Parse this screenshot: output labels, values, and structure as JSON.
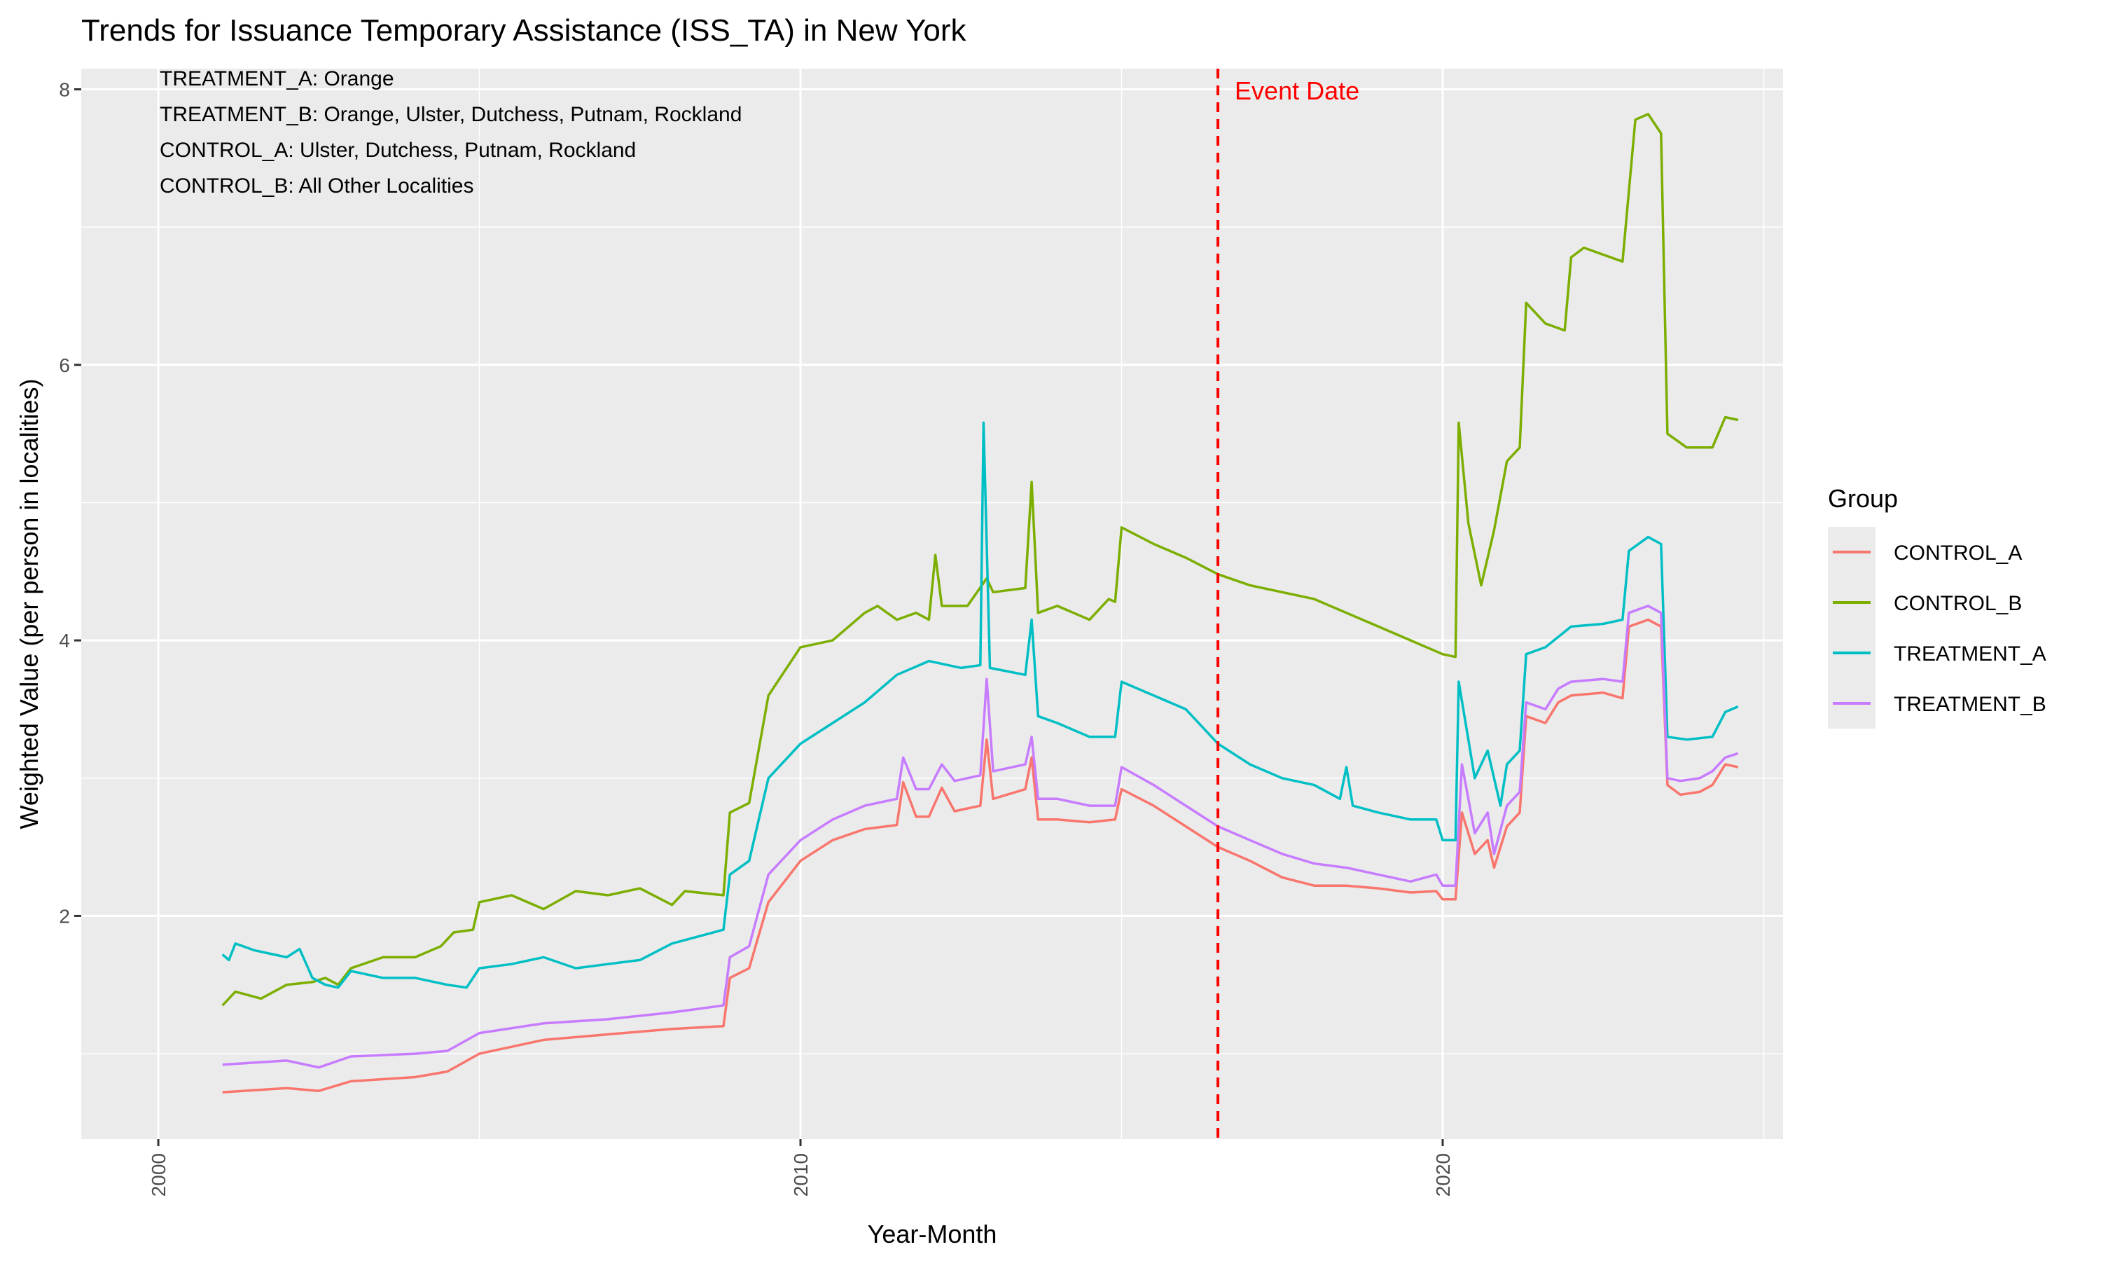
{
  "chart_data": {
    "type": "line",
    "title": "Trends for Issuance Temporary Assistance (ISS_TA) in New York",
    "xlabel": "Year-Month",
    "ylabel": "Weighted Value (per person in localities)",
    "x_ticks": [
      "2000",
      "2010",
      "2020"
    ],
    "y_ticks": [
      "2",
      "4",
      "6",
      "8"
    ],
    "xlim": [
      1998.8,
      2025.3
    ],
    "ylim": [
      0.38,
      8.15
    ],
    "grid": true,
    "legend_title": "Group",
    "legend_position": "right",
    "event": {
      "x": 2016.5,
      "label": "Event Date",
      "color": "#ff0000"
    },
    "notes": [
      "TREATMENT_A: Orange",
      "TREATMENT_B: Orange, Ulster, Dutchess, Putnam, Rockland",
      "CONTROL_A: Ulster, Dutchess, Putnam, Rockland",
      "CONTROL_B: All Other Localities"
    ],
    "series": [
      {
        "name": "CONTROL_A",
        "color": "#F8766D",
        "points": [
          [
            2001.0,
            0.72
          ],
          [
            2002.0,
            0.75
          ],
          [
            2002.5,
            0.73
          ],
          [
            2003.0,
            0.8
          ],
          [
            2004.0,
            0.83
          ],
          [
            2004.5,
            0.87
          ],
          [
            2005.0,
            1.0
          ],
          [
            2006.0,
            1.1
          ],
          [
            2007.0,
            1.14
          ],
          [
            2008.0,
            1.18
          ],
          [
            2008.8,
            1.2
          ],
          [
            2008.9,
            1.55
          ],
          [
            2009.2,
            1.62
          ],
          [
            2009.5,
            2.1
          ],
          [
            2010.0,
            2.4
          ],
          [
            2010.5,
            2.55
          ],
          [
            2011.0,
            2.63
          ],
          [
            2011.5,
            2.66
          ],
          [
            2011.6,
            2.97
          ],
          [
            2011.8,
            2.72
          ],
          [
            2012.0,
            2.72
          ],
          [
            2012.2,
            2.93
          ],
          [
            2012.4,
            2.76
          ],
          [
            2012.6,
            2.78
          ],
          [
            2012.8,
            2.8
          ],
          [
            2012.9,
            3.28
          ],
          [
            2013.0,
            2.85
          ],
          [
            2013.5,
            2.92
          ],
          [
            2013.6,
            3.15
          ],
          [
            2013.7,
            2.7
          ],
          [
            2014.0,
            2.7
          ],
          [
            2014.5,
            2.68
          ],
          [
            2014.9,
            2.7
          ],
          [
            2015.0,
            2.92
          ],
          [
            2015.5,
            2.8
          ],
          [
            2016.0,
            2.65
          ],
          [
            2016.5,
            2.5
          ],
          [
            2017.0,
            2.4
          ],
          [
            2017.5,
            2.28
          ],
          [
            2018.0,
            2.22
          ],
          [
            2018.5,
            2.22
          ],
          [
            2019.0,
            2.2
          ],
          [
            2019.5,
            2.17
          ],
          [
            2019.9,
            2.18
          ],
          [
            2020.0,
            2.12
          ],
          [
            2020.2,
            2.12
          ],
          [
            2020.3,
            2.75
          ],
          [
            2020.5,
            2.45
          ],
          [
            2020.7,
            2.55
          ],
          [
            2020.8,
            2.35
          ],
          [
            2021.0,
            2.65
          ],
          [
            2021.2,
            2.75
          ],
          [
            2021.3,
            3.45
          ],
          [
            2021.6,
            3.4
          ],
          [
            2021.8,
            3.55
          ],
          [
            2022.0,
            3.6
          ],
          [
            2022.5,
            3.62
          ],
          [
            2022.8,
            3.58
          ],
          [
            2022.9,
            4.1
          ],
          [
            2023.2,
            4.15
          ],
          [
            2023.4,
            4.1
          ],
          [
            2023.5,
            2.95
          ],
          [
            2023.7,
            2.88
          ],
          [
            2024.0,
            2.9
          ],
          [
            2024.2,
            2.95
          ],
          [
            2024.4,
            3.1
          ],
          [
            2024.6,
            3.08
          ]
        ]
      },
      {
        "name": "CONTROL_B",
        "color": "#7CAE00",
        "points": [
          [
            2001.0,
            1.35
          ],
          [
            2001.2,
            1.45
          ],
          [
            2001.6,
            1.4
          ],
          [
            2002.0,
            1.5
          ],
          [
            2002.4,
            1.52
          ],
          [
            2002.6,
            1.55
          ],
          [
            2002.8,
            1.5
          ],
          [
            2003.0,
            1.62
          ],
          [
            2003.5,
            1.7
          ],
          [
            2004.0,
            1.7
          ],
          [
            2004.4,
            1.78
          ],
          [
            2004.6,
            1.88
          ],
          [
            2004.9,
            1.9
          ],
          [
            2005.0,
            2.1
          ],
          [
            2005.5,
            2.15
          ],
          [
            2006.0,
            2.05
          ],
          [
            2006.5,
            2.18
          ],
          [
            2007.0,
            2.15
          ],
          [
            2007.5,
            2.2
          ],
          [
            2008.0,
            2.08
          ],
          [
            2008.2,
            2.18
          ],
          [
            2008.8,
            2.15
          ],
          [
            2008.9,
            2.75
          ],
          [
            2009.2,
            2.82
          ],
          [
            2009.5,
            3.6
          ],
          [
            2010.0,
            3.95
          ],
          [
            2010.5,
            4.0
          ],
          [
            2011.0,
            4.2
          ],
          [
            2011.2,
            4.25
          ],
          [
            2011.5,
            4.15
          ],
          [
            2011.8,
            4.2
          ],
          [
            2012.0,
            4.15
          ],
          [
            2012.1,
            4.62
          ],
          [
            2012.2,
            4.25
          ],
          [
            2012.6,
            4.25
          ],
          [
            2012.9,
            4.45
          ],
          [
            2013.0,
            4.35
          ],
          [
            2013.5,
            4.38
          ],
          [
            2013.6,
            5.15
          ],
          [
            2013.7,
            4.2
          ],
          [
            2014.0,
            4.25
          ],
          [
            2014.5,
            4.15
          ],
          [
            2014.8,
            4.3
          ],
          [
            2014.9,
            4.28
          ],
          [
            2015.0,
            4.82
          ],
          [
            2015.5,
            4.7
          ],
          [
            2016.0,
            4.6
          ],
          [
            2016.5,
            4.48
          ],
          [
            2017.0,
            4.4
          ],
          [
            2017.5,
            4.35
          ],
          [
            2018.0,
            4.3
          ],
          [
            2018.5,
            4.2
          ],
          [
            2019.0,
            4.1
          ],
          [
            2019.5,
            4.0
          ],
          [
            2020.0,
            3.9
          ],
          [
            2020.2,
            3.88
          ],
          [
            2020.25,
            5.58
          ],
          [
            2020.4,
            4.85
          ],
          [
            2020.6,
            4.4
          ],
          [
            2020.8,
            4.8
          ],
          [
            2021.0,
            5.3
          ],
          [
            2021.2,
            5.4
          ],
          [
            2021.3,
            6.45
          ],
          [
            2021.6,
            6.3
          ],
          [
            2021.9,
            6.25
          ],
          [
            2022.0,
            6.78
          ],
          [
            2022.2,
            6.85
          ],
          [
            2022.5,
            6.8
          ],
          [
            2022.8,
            6.75
          ],
          [
            2023.0,
            7.78
          ],
          [
            2023.2,
            7.82
          ],
          [
            2023.4,
            7.68
          ],
          [
            2023.5,
            5.5
          ],
          [
            2023.8,
            5.4
          ],
          [
            2024.2,
            5.4
          ],
          [
            2024.4,
            5.62
          ],
          [
            2024.6,
            5.6
          ]
        ]
      },
      {
        "name": "TREATMENT_A",
        "color": "#00BFC4",
        "points": [
          [
            2001.0,
            1.72
          ],
          [
            2001.1,
            1.68
          ],
          [
            2001.2,
            1.8
          ],
          [
            2001.5,
            1.75
          ],
          [
            2002.0,
            1.7
          ],
          [
            2002.2,
            1.76
          ],
          [
            2002.4,
            1.55
          ],
          [
            2002.6,
            1.5
          ],
          [
            2002.8,
            1.48
          ],
          [
            2003.0,
            1.6
          ],
          [
            2003.5,
            1.55
          ],
          [
            2004.0,
            1.55
          ],
          [
            2004.5,
            1.5
          ],
          [
            2004.8,
            1.48
          ],
          [
            2005.0,
            1.62
          ],
          [
            2005.5,
            1.65
          ],
          [
            2006.0,
            1.7
          ],
          [
            2006.5,
            1.62
          ],
          [
            2007.0,
            1.65
          ],
          [
            2007.5,
            1.68
          ],
          [
            2008.0,
            1.8
          ],
          [
            2008.8,
            1.9
          ],
          [
            2008.9,
            2.3
          ],
          [
            2009.2,
            2.4
          ],
          [
            2009.5,
            3.0
          ],
          [
            2010.0,
            3.25
          ],
          [
            2010.5,
            3.4
          ],
          [
            2011.0,
            3.55
          ],
          [
            2011.5,
            3.75
          ],
          [
            2012.0,
            3.85
          ],
          [
            2012.5,
            3.8
          ],
          [
            2012.8,
            3.82
          ],
          [
            2012.85,
            5.58
          ],
          [
            2012.95,
            3.8
          ],
          [
            2013.5,
            3.75
          ],
          [
            2013.6,
            4.15
          ],
          [
            2013.7,
            3.45
          ],
          [
            2014.0,
            3.4
          ],
          [
            2014.5,
            3.3
          ],
          [
            2014.9,
            3.3
          ],
          [
            2015.0,
            3.7
          ],
          [
            2015.5,
            3.6
          ],
          [
            2016.0,
            3.5
          ],
          [
            2016.5,
            3.25
          ],
          [
            2017.0,
            3.1
          ],
          [
            2017.5,
            3.0
          ],
          [
            2018.0,
            2.95
          ],
          [
            2018.4,
            2.85
          ],
          [
            2018.5,
            3.08
          ],
          [
            2018.6,
            2.8
          ],
          [
            2019.0,
            2.75
          ],
          [
            2019.5,
            2.7
          ],
          [
            2019.9,
            2.7
          ],
          [
            2020.0,
            2.55
          ],
          [
            2020.2,
            2.55
          ],
          [
            2020.25,
            3.7
          ],
          [
            2020.5,
            3.0
          ],
          [
            2020.7,
            3.2
          ],
          [
            2020.9,
            2.8
          ],
          [
            2021.0,
            3.1
          ],
          [
            2021.2,
            3.2
          ],
          [
            2021.3,
            3.9
          ],
          [
            2021.6,
            3.95
          ],
          [
            2022.0,
            4.1
          ],
          [
            2022.5,
            4.12
          ],
          [
            2022.8,
            4.15
          ],
          [
            2022.9,
            4.65
          ],
          [
            2023.2,
            4.75
          ],
          [
            2023.4,
            4.7
          ],
          [
            2023.5,
            3.3
          ],
          [
            2023.8,
            3.28
          ],
          [
            2024.2,
            3.3
          ],
          [
            2024.4,
            3.48
          ],
          [
            2024.6,
            3.52
          ]
        ]
      },
      {
        "name": "TREATMENT_B",
        "color": "#C77CFF",
        "points": [
          [
            2001.0,
            0.92
          ],
          [
            2002.0,
            0.95
          ],
          [
            2002.5,
            0.9
          ],
          [
            2003.0,
            0.98
          ],
          [
            2004.0,
            1.0
          ],
          [
            2004.5,
            1.02
          ],
          [
            2005.0,
            1.15
          ],
          [
            2006.0,
            1.22
          ],
          [
            2007.0,
            1.25
          ],
          [
            2008.0,
            1.3
          ],
          [
            2008.8,
            1.35
          ],
          [
            2008.9,
            1.7
          ],
          [
            2009.2,
            1.78
          ],
          [
            2009.5,
            2.3
          ],
          [
            2010.0,
            2.55
          ],
          [
            2010.5,
            2.7
          ],
          [
            2011.0,
            2.8
          ],
          [
            2011.5,
            2.85
          ],
          [
            2011.6,
            3.15
          ],
          [
            2011.8,
            2.92
          ],
          [
            2012.0,
            2.92
          ],
          [
            2012.2,
            3.1
          ],
          [
            2012.4,
            2.98
          ],
          [
            2012.6,
            3.0
          ],
          [
            2012.8,
            3.02
          ],
          [
            2012.9,
            3.72
          ],
          [
            2013.0,
            3.05
          ],
          [
            2013.5,
            3.1
          ],
          [
            2013.6,
            3.3
          ],
          [
            2013.7,
            2.85
          ],
          [
            2014.0,
            2.85
          ],
          [
            2014.5,
            2.8
          ],
          [
            2014.9,
            2.8
          ],
          [
            2015.0,
            3.08
          ],
          [
            2015.5,
            2.95
          ],
          [
            2016.0,
            2.8
          ],
          [
            2016.5,
            2.65
          ],
          [
            2017.0,
            2.55
          ],
          [
            2017.5,
            2.45
          ],
          [
            2018.0,
            2.38
          ],
          [
            2018.5,
            2.35
          ],
          [
            2019.0,
            2.3
          ],
          [
            2019.5,
            2.25
          ],
          [
            2019.9,
            2.3
          ],
          [
            2020.0,
            2.22
          ],
          [
            2020.2,
            2.22
          ],
          [
            2020.3,
            3.1
          ],
          [
            2020.5,
            2.6
          ],
          [
            2020.7,
            2.75
          ],
          [
            2020.8,
            2.45
          ],
          [
            2021.0,
            2.8
          ],
          [
            2021.2,
            2.9
          ],
          [
            2021.3,
            3.55
          ],
          [
            2021.6,
            3.5
          ],
          [
            2021.8,
            3.65
          ],
          [
            2022.0,
            3.7
          ],
          [
            2022.5,
            3.72
          ],
          [
            2022.8,
            3.7
          ],
          [
            2022.9,
            4.2
          ],
          [
            2023.2,
            4.25
          ],
          [
            2023.4,
            4.2
          ],
          [
            2023.5,
            3.0
          ],
          [
            2023.7,
            2.98
          ],
          [
            2024.0,
            3.0
          ],
          [
            2024.2,
            3.05
          ],
          [
            2024.4,
            3.15
          ],
          [
            2024.6,
            3.18
          ]
        ]
      }
    ]
  }
}
